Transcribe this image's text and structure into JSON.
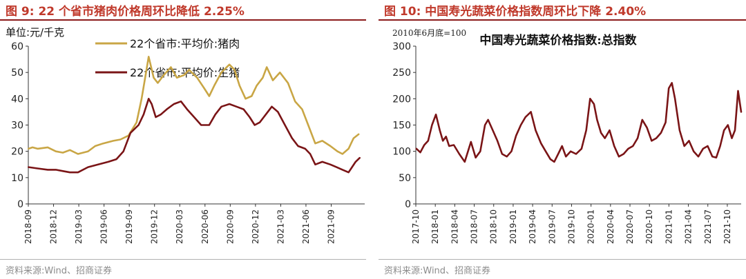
{
  "figures": [
    {
      "title": "图 9:  22 个省市猪肉价格周环比降低 2.25%",
      "source": "资料来源:Wind、招商证券"
    },
    {
      "title": "图 10:  中国寿光蔬菜价格指数周环比下降 2.40%",
      "source": "资料来源:Wind、招商证券"
    }
  ],
  "chart_data": [
    {
      "type": "line",
      "unit_label": "单位:元/千克",
      "ylim": [
        0,
        60
      ],
      "yticks": [
        "0",
        "10",
        "20",
        "30",
        "40",
        "50",
        "60"
      ],
      "xlim": [
        2018.708,
        2022.04
      ],
      "x_tick_labels": [
        "2018-09",
        "2018-12",
        "2019-03",
        "2019-06",
        "2019-09",
        "2019-12",
        "2020-03",
        "2020-06",
        "2020-09",
        "2020-12",
        "2021-03",
        "2021-06",
        "2021-09"
      ],
      "x_tick_positions": [
        2018.708,
        2018.958,
        2019.208,
        2019.458,
        2019.708,
        2019.958,
        2020.208,
        2020.458,
        2020.708,
        2020.958,
        2021.208,
        2021.458,
        2021.708
      ],
      "series": [
        {
          "name": "22个省市:平均价:猪肉",
          "color": "#c9a645",
          "x": [
            2018.71,
            2018.75,
            2018.8,
            2018.9,
            2018.98,
            2019.05,
            2019.12,
            2019.2,
            2019.3,
            2019.37,
            2019.45,
            2019.55,
            2019.62,
            2019.7,
            2019.78,
            2019.83,
            2019.87,
            2019.9,
            2019.95,
            2019.99,
            2020.05,
            2020.12,
            2020.18,
            2020.25,
            2020.3,
            2020.38,
            2020.45,
            2020.5,
            2020.55,
            2020.62,
            2020.7,
            2020.75,
            2020.8,
            2020.86,
            2020.92,
            2020.97,
            2021.03,
            2021.07,
            2021.13,
            2021.2,
            2021.28,
            2021.35,
            2021.42,
            2021.48,
            2021.55,
            2021.62,
            2021.7,
            2021.77,
            2021.82,
            2021.88,
            2021.93,
            2021.98
          ],
          "values": [
            21,
            21.5,
            21,
            21.5,
            20,
            19.5,
            20.5,
            19,
            20,
            22,
            23,
            24,
            24.5,
            26,
            31,
            40,
            49,
            56,
            48,
            46,
            49,
            52,
            48,
            49,
            51,
            48,
            44,
            41,
            45,
            50,
            53,
            51,
            45,
            40,
            41,
            45,
            48,
            52,
            47,
            50,
            46,
            39,
            36,
            30,
            23,
            24,
            22,
            20,
            19,
            21,
            25,
            26.5
          ]
        },
        {
          "name": "22个省市:平均价:生猪",
          "color": "#7a1416",
          "x": [
            2018.71,
            2018.8,
            2018.9,
            2018.98,
            2019.05,
            2019.12,
            2019.2,
            2019.3,
            2019.4,
            2019.5,
            2019.58,
            2019.65,
            2019.72,
            2019.8,
            2019.85,
            2019.9,
            2019.93,
            2019.97,
            2020.02,
            2020.08,
            2020.15,
            2020.22,
            2020.28,
            2020.35,
            2020.42,
            2020.5,
            2020.56,
            2020.62,
            2020.7,
            2020.77,
            2020.84,
            2020.9,
            2020.95,
            2021.0,
            2021.06,
            2021.12,
            2021.18,
            2021.25,
            2021.32,
            2021.38,
            2021.45,
            2021.5,
            2021.55,
            2021.62,
            2021.7,
            2021.76,
            2021.82,
            2021.88,
            2021.95,
            2021.99
          ],
          "values": [
            14,
            13.5,
            13,
            13,
            12.5,
            12,
            12,
            14,
            15,
            16,
            17,
            20,
            27,
            30,
            34,
            40,
            38,
            33,
            34,
            36,
            38,
            39,
            36,
            33,
            30,
            30,
            34,
            37,
            38,
            37,
            36,
            33,
            30,
            31,
            34,
            37,
            35,
            30,
            25,
            22,
            21,
            19,
            15,
            16,
            15,
            14,
            13,
            12,
            16,
            17.5
          ]
        }
      ]
    },
    {
      "type": "line",
      "title": "中国寿光蔬菜价格指数:总指数",
      "note": "2010年6月底=100",
      "ylim": [
        0,
        300
      ],
      "yticks": [
        "0",
        "50",
        "100",
        "150",
        "200",
        "250",
        "300"
      ],
      "xlim": [
        2017.792,
        2021.97
      ],
      "x_tick_labels": [
        "2017-10",
        "2018-01",
        "2018-04",
        "2018-07",
        "2018-10",
        "2019-01",
        "2019-04",
        "2019-07",
        "2019-10",
        "2020-01",
        "2020-04",
        "2020-07",
        "2020-10",
        "2021-01",
        "2021-04",
        "2021-07",
        "2021-10"
      ],
      "x_tick_positions": [
        2017.792,
        2018.042,
        2018.292,
        2018.542,
        2018.792,
        2019.042,
        2019.292,
        2019.542,
        2019.792,
        2020.042,
        2020.292,
        2020.542,
        2020.792,
        2021.042,
        2021.292,
        2021.542,
        2021.792
      ],
      "series": [
        {
          "name": "中国寿光蔬菜价格指数:总指数",
          "color": "#7a1416",
          "x": [
            2017.8,
            2017.85,
            2017.9,
            2017.95,
            2018.0,
            2018.05,
            2018.1,
            2018.14,
            2018.18,
            2018.22,
            2018.28,
            2018.35,
            2018.42,
            2018.5,
            2018.56,
            2018.62,
            2018.68,
            2018.72,
            2018.78,
            2018.84,
            2018.9,
            2018.96,
            2019.02,
            2019.08,
            2019.14,
            2019.2,
            2019.27,
            2019.33,
            2019.4,
            2019.46,
            2019.52,
            2019.57,
            2019.62,
            2019.67,
            2019.72,
            2019.78,
            2019.85,
            2019.92,
            2019.98,
            2020.03,
            2020.08,
            2020.12,
            2020.17,
            2020.22,
            2020.28,
            2020.34,
            2020.4,
            2020.46,
            2020.52,
            2020.58,
            2020.64,
            2020.7,
            2020.76,
            2020.82,
            2020.88,
            2020.94,
            2021.0,
            2021.04,
            2021.08,
            2021.12,
            2021.18,
            2021.24,
            2021.3,
            2021.36,
            2021.42,
            2021.48,
            2021.54,
            2021.6,
            2021.65,
            2021.7,
            2021.75,
            2021.8,
            2021.85,
            2021.89,
            2021.93,
            2021.97
          ],
          "values": [
            105,
            98,
            112,
            120,
            150,
            170,
            140,
            120,
            128,
            110,
            112,
            95,
            80,
            118,
            88,
            100,
            150,
            160,
            140,
            120,
            95,
            90,
            100,
            130,
            150,
            165,
            175,
            140,
            115,
            100,
            85,
            80,
            95,
            110,
            90,
            100,
            95,
            105,
            140,
            200,
            190,
            160,
            135,
            125,
            140,
            110,
            90,
            95,
            105,
            110,
            125,
            160,
            145,
            120,
            125,
            135,
            155,
            220,
            230,
            200,
            140,
            110,
            120,
            100,
            90,
            105,
            110,
            90,
            88,
            110,
            140,
            150,
            125,
            140,
            215,
            175
          ]
        }
      ]
    }
  ]
}
